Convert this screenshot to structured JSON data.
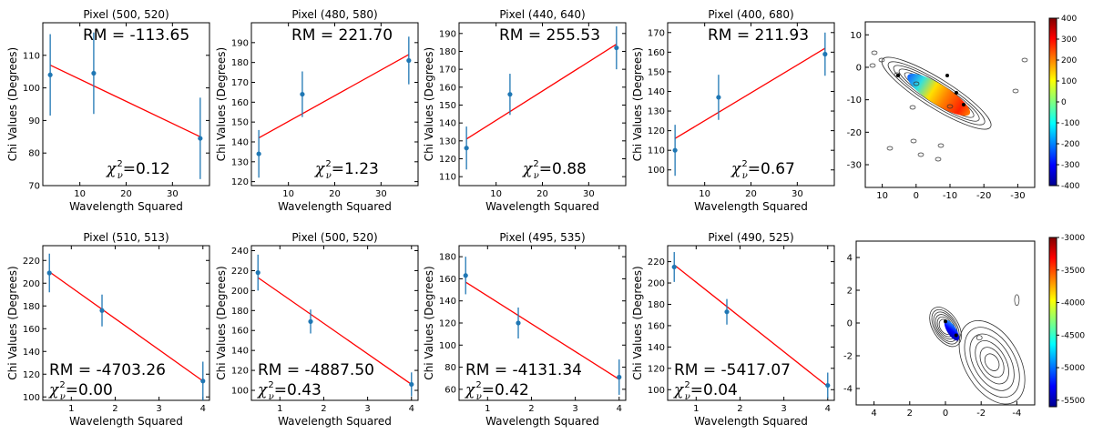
{
  "chart_data": [
    {
      "type": "scatter",
      "title": "Pixel (500, 520)",
      "xlabel": "Wavelength Squared",
      "ylabel": "Chi Values (Degrees)",
      "xlim": [
        2,
        38
      ],
      "xticks": [
        10,
        20,
        30
      ],
      "ylim": [
        70,
        120
      ],
      "yticks": [
        70,
        80,
        90,
        100,
        110
      ],
      "x": [
        3.6,
        13.0,
        36.0
      ],
      "y": [
        104,
        104.5,
        84.5
      ],
      "err": [
        12.5,
        12.5,
        12.5
      ],
      "fit": [
        [
          3.6,
          107
        ],
        [
          36,
          85
        ]
      ],
      "rm": "RM = -113.65",
      "chi2": "=0.12",
      "chi2_sym": "χ",
      "chi2_sup": "2",
      "chi2_sub": "ν",
      "ann": "top-right"
    },
    {
      "type": "scatter",
      "title": "Pixel (480, 580)",
      "xlabel": "Wavelength Squared",
      "ylabel": "Chi Values (Degrees)",
      "xlim": [
        2,
        38
      ],
      "xticks": [
        10,
        20,
        30
      ],
      "ylim": [
        118,
        200
      ],
      "yticks": [
        120,
        130,
        140,
        150,
        160,
        170,
        180,
        190
      ],
      "x": [
        3.6,
        13.0,
        36.0
      ],
      "y": [
        134,
        164,
        181
      ],
      "err": [
        12,
        11.5,
        12
      ],
      "fit": [
        [
          3.6,
          142
        ],
        [
          36,
          184
        ]
      ],
      "rm": "RM = 221.70",
      "chi2": "=1.23",
      "chi2_sym": "χ",
      "chi2_sup": "2",
      "chi2_sub": "ν",
      "ann": "top-right"
    },
    {
      "type": "scatter",
      "title": "Pixel (440, 640)",
      "xlabel": "Wavelength Squared",
      "ylabel": "Chi Values (Degrees)",
      "xlim": [
        2,
        38
      ],
      "xticks": [
        10,
        20,
        30
      ],
      "ylim": [
        105,
        196
      ],
      "yticks": [
        110,
        120,
        130,
        140,
        150,
        160,
        170,
        180,
        190
      ],
      "x": [
        3.6,
        13.0,
        36.0
      ],
      "y": [
        126,
        156,
        182
      ],
      "err": [
        12,
        11.5,
        12
      ],
      "fit": [
        [
          3.6,
          131
        ],
        [
          36,
          184
        ]
      ],
      "rm": "RM = 255.53",
      "chi2": "=0.88",
      "chi2_sym": "χ",
      "chi2_sup": "2",
      "chi2_sub": "ν",
      "ann": "top-right"
    },
    {
      "type": "scatter",
      "title": "Pixel (400, 680)",
      "xlabel": "Wavelength Squared",
      "ylabel": "Chi Values (Degrees)",
      "xlim": [
        2,
        38
      ],
      "xticks": [
        10,
        20,
        30
      ],
      "ylim": [
        92,
        175
      ],
      "yticks": [
        100,
        110,
        120,
        130,
        140,
        150,
        160,
        170
      ],
      "x": [
        3.6,
        13.0,
        36.0
      ],
      "y": [
        110,
        137,
        159
      ],
      "err": [
        13,
        11.5,
        11
      ],
      "fit": [
        [
          3.6,
          116
        ],
        [
          36,
          162
        ]
      ],
      "rm": "RM = 211.93",
      "chi2": "=0.67",
      "chi2_sym": "χ",
      "chi2_sup": "2",
      "chi2_sub": "ν",
      "ann": "top-right"
    },
    {
      "type": "scatter",
      "title": "Pixel (510, 513)",
      "xlabel": "Wavelength Squared",
      "ylabel": "Chi Values (Degrees)",
      "xlim": [
        0.35,
        4.15
      ],
      "xticks": [
        1,
        2,
        3,
        4
      ],
      "ylim": [
        97,
        233
      ],
      "yticks": [
        100,
        120,
        140,
        160,
        180,
        200,
        220
      ],
      "x": [
        0.5,
        1.7,
        4.0
      ],
      "y": [
        209,
        176,
        114
      ],
      "err": [
        17,
        14,
        17
      ],
      "fit": [
        [
          0.5,
          210
        ],
        [
          4.0,
          114
        ]
      ],
      "rm": "RM = -4703.26",
      "chi2": "=0.00",
      "chi2_sym": "χ",
      "chi2_sup": "2",
      "chi2_sub": "ν",
      "ann": "bottom-left"
    },
    {
      "type": "scatter",
      "title": "Pixel (500, 520)",
      "xlabel": "Wavelength Squared",
      "ylabel": "Chi Values (Degrees)",
      "xlim": [
        0.35,
        4.15
      ],
      "xticks": [
        1,
        2,
        3,
        4
      ],
      "ylim": [
        90,
        245
      ],
      "yticks": [
        100,
        120,
        140,
        160,
        180,
        200,
        220,
        240
      ],
      "x": [
        0.5,
        1.7,
        4.0
      ],
      "y": [
        218,
        169,
        106
      ],
      "err": [
        18,
        12,
        12
      ],
      "fit": [
        [
          0.5,
          213
        ],
        [
          4.0,
          106
        ]
      ],
      "rm": "RM = -4887.50",
      "chi2": "=0.43",
      "chi2_sym": "χ",
      "chi2_sup": "2",
      "chi2_sub": "ν",
      "ann": "bottom-left"
    },
    {
      "type": "scatter",
      "title": "Pixel (495, 535)",
      "xlabel": "Wavelength Squared",
      "ylabel": "Chi Values (Degrees)",
      "xlim": [
        0.35,
        4.15
      ],
      "xticks": [
        1,
        2,
        3,
        4
      ],
      "ylim": [
        50,
        190
      ],
      "yticks": [
        60,
        80,
        100,
        120,
        140,
        160,
        180
      ],
      "x": [
        0.5,
        1.7,
        4.0
      ],
      "y": [
        163,
        120,
        71
      ],
      "err": [
        17,
        14,
        16
      ],
      "fit": [
        [
          0.5,
          157
        ],
        [
          4.0,
          69
        ]
      ],
      "rm": "RM = -4131.34",
      "chi2": "=0.42",
      "chi2_sym": "χ",
      "chi2_sup": "2",
      "chi2_sub": "ν",
      "ann": "bottom-left"
    },
    {
      "type": "scatter",
      "title": "Pixel (490, 525)",
      "xlabel": "Wavelength Squared",
      "ylabel": "Chi Values (Degrees)",
      "xlim": [
        0.35,
        4.15
      ],
      "xticks": [
        1,
        2,
        3,
        4
      ],
      "ylim": [
        90,
        235
      ],
      "yticks": [
        100,
        120,
        140,
        160,
        180,
        200,
        220
      ],
      "x": [
        0.5,
        1.7,
        4.0
      ],
      "y": [
        215,
        173,
        104
      ],
      "err": [
        14,
        12,
        12
      ],
      "fit": [
        [
          0.5,
          217
        ],
        [
          4.0,
          103
        ]
      ],
      "rm": "RM = -5417.07",
      "chi2": "=0.04",
      "chi2_sym": "χ",
      "chi2_sup": "2",
      "chi2_sub": "ν",
      "ann": "bottom-left"
    },
    {
      "type": "heatmap",
      "xlim": [
        15,
        -35
      ],
      "xticks": [
        10,
        0,
        -10,
        -20,
        -30
      ],
      "ylim": [
        -37,
        14
      ],
      "yticks": [
        10,
        0,
        -10,
        -20,
        -30
      ],
      "colorbar_range": [
        -400,
        400
      ],
      "colorbar_ticks": [
        400,
        300,
        200,
        100,
        0,
        -100,
        -200,
        -300,
        -400
      ]
    },
    {
      "type": "heatmap",
      "xlim": [
        5,
        -5
      ],
      "xticks": [
        4,
        2,
        0,
        -2,
        -4
      ],
      "ylim": [
        -5,
        5
      ],
      "yticks": [
        4,
        2,
        0,
        -2,
        -4
      ],
      "colorbar_range": [
        -5600,
        -3000
      ],
      "colorbar_ticks": [
        -3000,
        -3500,
        -4000,
        -4500,
        -5000,
        -5500
      ]
    }
  ],
  "colors": {
    "points": "#1f77b4",
    "fit": "#ff0000",
    "axes": "#000000",
    "contour": "#333333"
  }
}
